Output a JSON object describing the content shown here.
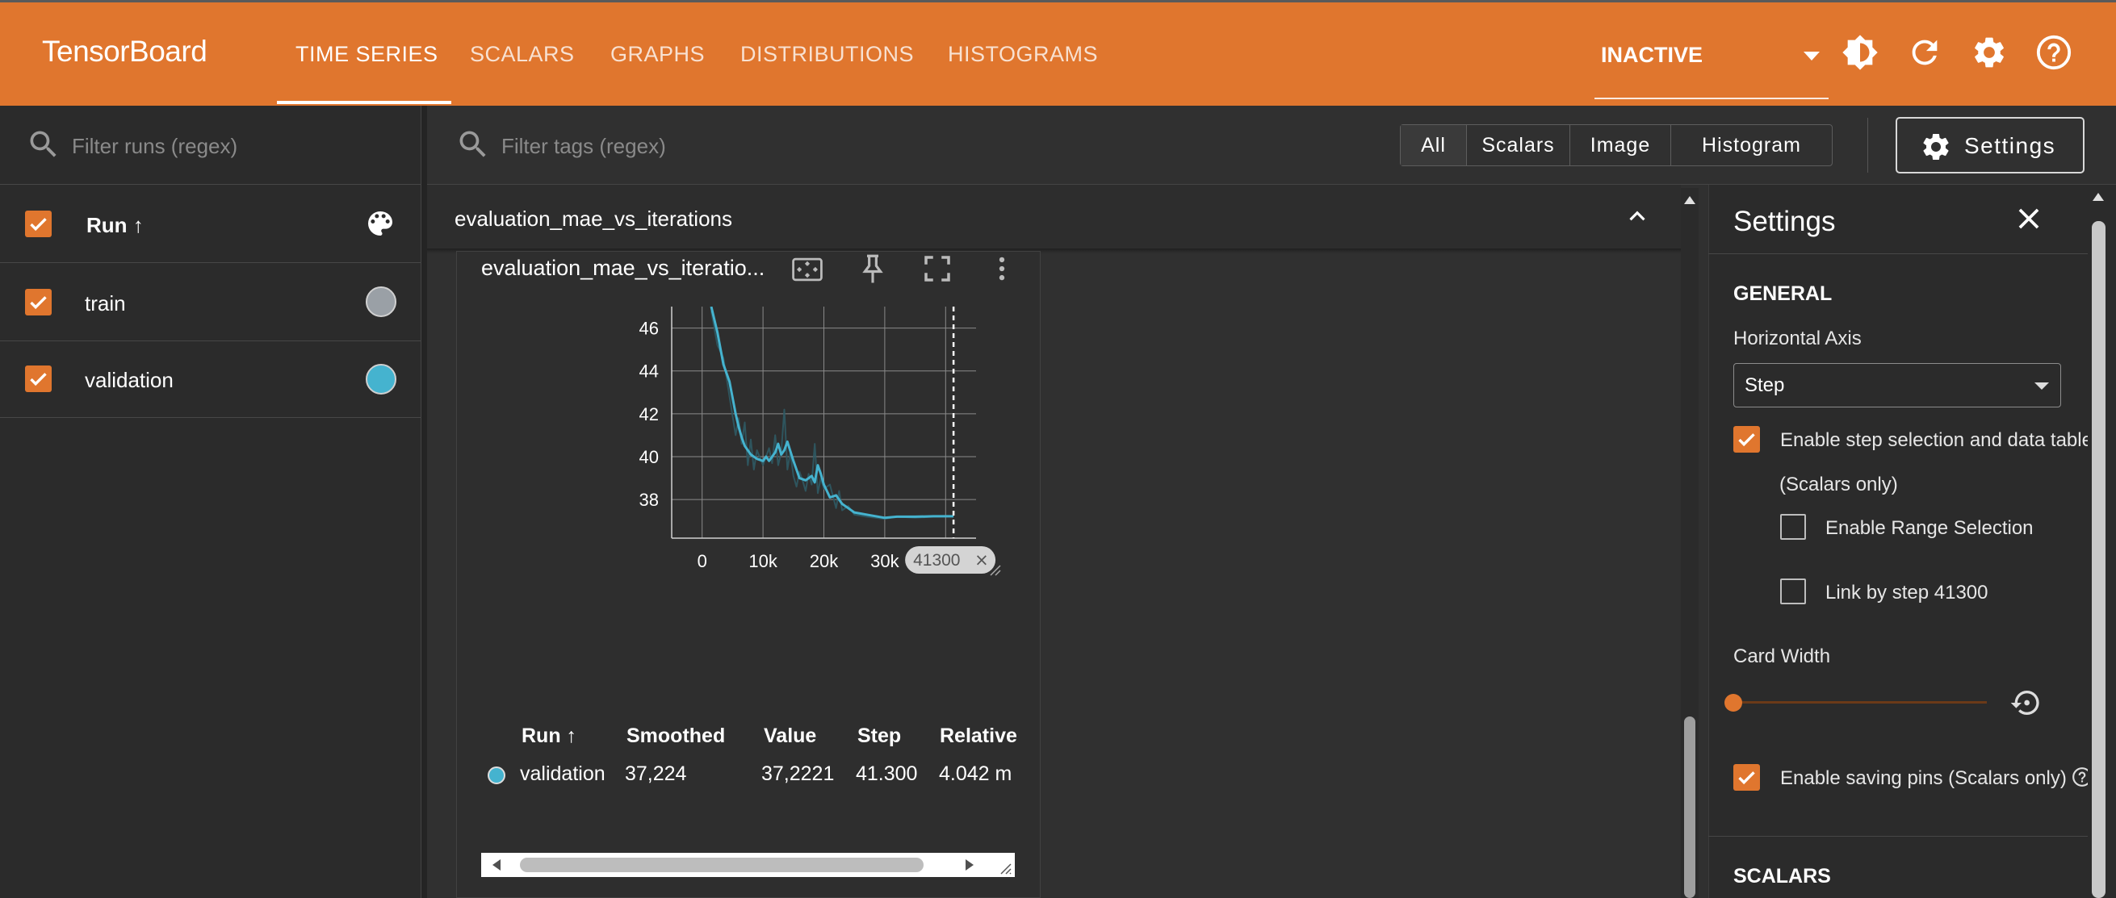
{
  "header": {
    "brand": "TensorBoard",
    "tabs": [
      {
        "label": "TIME SERIES",
        "active": true
      },
      {
        "label": "SCALARS",
        "active": false
      },
      {
        "label": "GRAPHS",
        "active": false
      },
      {
        "label": "DISTRIBUTIONS",
        "active": false
      },
      {
        "label": "HISTOGRAMS",
        "active": false
      }
    ],
    "status_select": "INACTIVE",
    "icons": [
      "theme-toggle-icon",
      "refresh-icon",
      "settings-gear-icon",
      "help-icon"
    ],
    "color": "#e0762e"
  },
  "runs_panel": {
    "filter_placeholder": "Filter runs (regex)",
    "header_label": "Run ↑",
    "runs": [
      {
        "name": "train",
        "checked": true,
        "color": "#9aa0a6"
      },
      {
        "name": "validation",
        "checked": true,
        "color": "#45b3cf"
      }
    ]
  },
  "toolbar": {
    "filter_placeholder": "Filter tags (regex)",
    "type_filters": [
      "All",
      "Scalars",
      "Image",
      "Histogram"
    ],
    "active_type_filter": "All",
    "settings_button": "Settings"
  },
  "group": {
    "title": "evaluation_mae_vs_iterations",
    "expanded": true
  },
  "card": {
    "title": "evaluation_mae_vs_iteratio...",
    "icons": [
      "fit-domain-icon",
      "pin-icon",
      "fullscreen-icon",
      "more-vert-icon"
    ],
    "step_chip": "41300",
    "legend_headers": [
      "Run ↑",
      "Smoothed",
      "Value",
      "Step",
      "Relative"
    ],
    "legend_row": {
      "run": "validation",
      "smoothed": "37,224",
      "value": "37,2221",
      "step": "41.300",
      "relative": "4.042 m",
      "color": "#45b3cf"
    }
  },
  "chart_data": {
    "type": "line",
    "title": "",
    "xlabel": "",
    "ylabel": "",
    "x_ticks": [
      "0",
      "10k",
      "20k",
      "30k"
    ],
    "y_ticks": [
      "46",
      "44",
      "42",
      "40",
      "38"
    ],
    "xlim": [
      -5000,
      45000
    ],
    "ylim": [
      36.2,
      47.0
    ],
    "selected_step": 41300,
    "series": [
      {
        "name": "validation",
        "smoothed": true,
        "color": "#45b3cf",
        "x": [
          1500,
          2500,
          3500,
          4500,
          5500,
          6000,
          6500,
          7000,
          8000,
          9000,
          10000,
          10500,
          11000,
          12000,
          12500,
          13000,
          13500,
          14000,
          15000,
          16000,
          17000,
          18000,
          18500,
          19000,
          19500,
          20000,
          21000,
          22000,
          23000,
          24000,
          25000,
          27000,
          30000,
          32000,
          35000,
          38000,
          41300
        ],
        "y": [
          47.0,
          45.8,
          44.3,
          43.5,
          42.0,
          41.4,
          40.9,
          40.5,
          40.1,
          39.9,
          39.8,
          40.0,
          39.8,
          40.2,
          40.6,
          40.1,
          40.3,
          40.7,
          39.8,
          39.0,
          38.9,
          39.1,
          38.8,
          39.6,
          39.2,
          38.7,
          38.1,
          38.2,
          37.8,
          37.6,
          37.4,
          37.3,
          37.15,
          37.2,
          37.2,
          37.22,
          37.22
        ]
      },
      {
        "name": "validation",
        "smoothed": false,
        "color": "#2f5a64",
        "x": [
          1500,
          2500,
          3500,
          4500,
          5500,
          6000,
          6500,
          7000,
          7500,
          8000,
          8500,
          9000,
          10000,
          11000,
          11500,
          12000,
          12500,
          13000,
          13500,
          14000,
          14500,
          15000,
          15500,
          16000,
          16500,
          17000,
          17500,
          18000,
          18500,
          19000,
          19500,
          20000,
          21000,
          22000,
          22500,
          23000,
          24000,
          25000,
          27000,
          30000,
          32000,
          35000,
          38000,
          41300
        ],
        "y": [
          46.8,
          45.2,
          44.6,
          42.8,
          41.0,
          41.8,
          40.6,
          41.6,
          39.6,
          40.8,
          39.4,
          40.3,
          39.6,
          40.4,
          39.7,
          41.0,
          39.6,
          40.2,
          42.2,
          39.4,
          40.2,
          39.1,
          38.6,
          39.3,
          38.9,
          38.4,
          39.2,
          38.7,
          40.6,
          38.3,
          39.0,
          38.5,
          38.7,
          37.6,
          38.4,
          37.5,
          37.7,
          37.3,
          37.2,
          37.1,
          37.2,
          37.15,
          37.2,
          37.22
        ]
      }
    ]
  },
  "settings_panel": {
    "title": "Settings",
    "general_title": "GENERAL",
    "horizontal_axis_label": "Horizontal Axis",
    "horizontal_axis_value": "Step",
    "step_selection_label": "Enable step selection and data table",
    "step_selection_note": "(Scalars only)",
    "range_selection_label": "Enable Range Selection",
    "link_by_step_label": "Link by step 41300",
    "card_width_label": "Card Width",
    "saving_pins_label": "Enable saving pins (Scalars only)",
    "scalars_title": "SCALARS",
    "step_selection_checked": true,
    "range_selection_checked": false,
    "link_by_step_checked": false,
    "saving_pins_checked": true,
    "card_width_level": 0.0
  }
}
